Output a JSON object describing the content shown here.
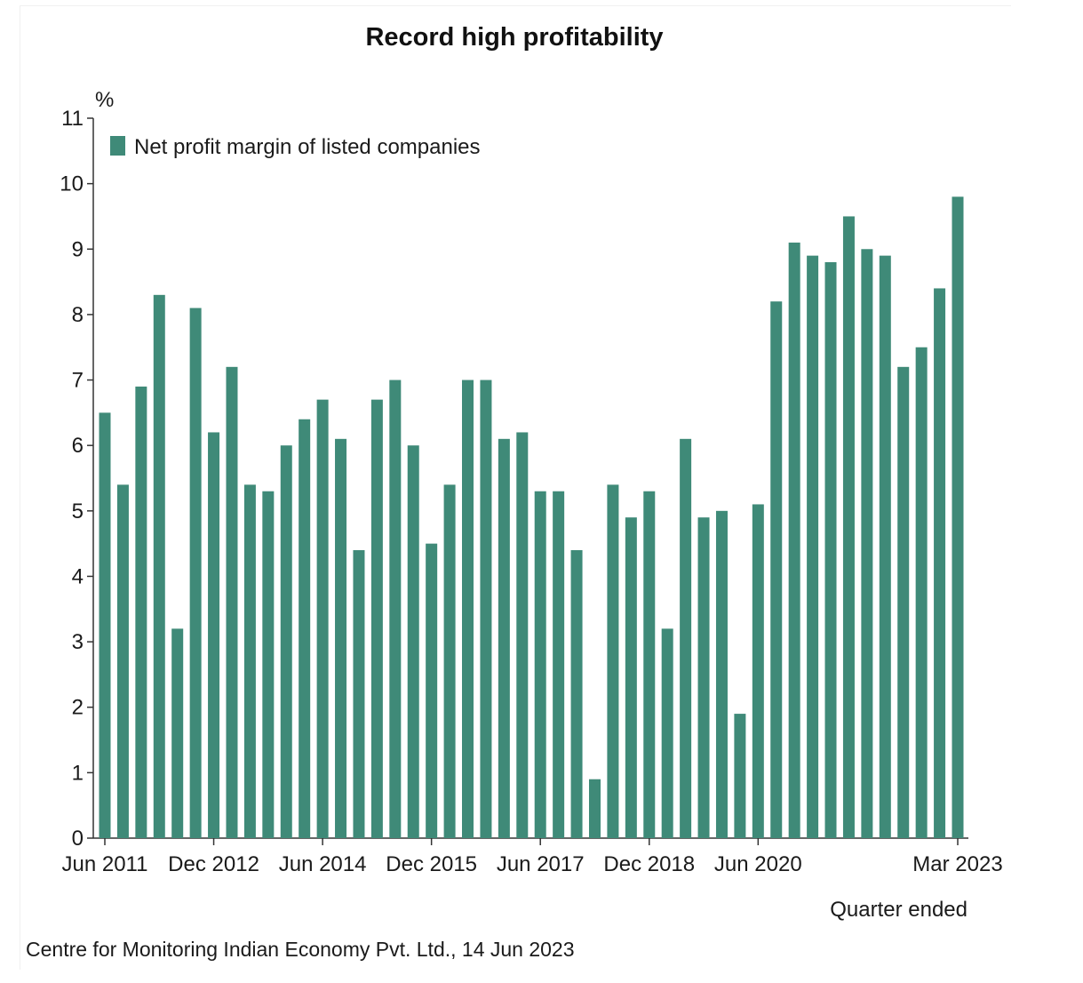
{
  "chart_data": {
    "type": "bar",
    "title": "Record high profitability",
    "ylabel": "%",
    "xlabel": "Quarter ended",
    "ylim": [
      0,
      11
    ],
    "yticks": [
      0,
      1,
      2,
      3,
      4,
      5,
      6,
      7,
      8,
      9,
      10,
      11
    ],
    "grid": false,
    "legend_position": "top-left",
    "colors": {
      "bar": "#3f8a78",
      "axis": "#333333"
    },
    "series": [
      {
        "name": "Net profit margin of listed companies",
        "values": [
          6.5,
          5.4,
          6.9,
          8.3,
          3.2,
          8.1,
          6.2,
          7.2,
          5.4,
          5.3,
          6.0,
          6.4,
          6.7,
          6.1,
          4.4,
          6.7,
          7.0,
          6.0,
          4.5,
          5.4,
          7.0,
          7.0,
          6.1,
          6.2,
          5.3,
          5.3,
          4.4,
          0.9,
          5.4,
          4.9,
          5.3,
          3.2,
          6.1,
          4.9,
          5.0,
          1.9,
          5.1,
          8.2,
          9.1,
          8.9,
          8.8,
          9.5,
          9.0,
          8.9,
          7.2,
          7.5,
          8.4,
          9.8
        ]
      }
    ],
    "categories": [
      "Jun 2011",
      "Sep 2011",
      "Dec 2011",
      "Mar 2012",
      "Jun 2012",
      "Sep 2012",
      "Dec 2012",
      "Mar 2013",
      "Jun 2013",
      "Sep 2013",
      "Dec 2013",
      "Mar 2014",
      "Jun 2014",
      "Sep 2014",
      "Dec 2014",
      "Mar 2015",
      "Jun 2015",
      "Sep 2015",
      "Dec 2015",
      "Mar 2016",
      "Jun 2016",
      "Sep 2016",
      "Dec 2016",
      "Mar 2017",
      "Jun 2017",
      "Sep 2017",
      "Dec 2017",
      "Mar 2018",
      "Jun 2018",
      "Sep 2018",
      "Dec 2018",
      "Mar 2019",
      "Jun 2019",
      "Sep 2019",
      "Dec 2019",
      "Mar 2020",
      "Jun 2020",
      "Sep 2020",
      "Dec 2020",
      "Mar 2021",
      "Jun 2021",
      "Sep 2021",
      "Dec 2021",
      "Mar 2022",
      "Jun 2022",
      "Sep 2022",
      "Dec 2022",
      "Mar 2023"
    ],
    "xtick_labels": [
      {
        "index": 0,
        "label": "Jun 2011"
      },
      {
        "index": 6,
        "label": "Dec 2012"
      },
      {
        "index": 12,
        "label": "Jun 2014"
      },
      {
        "index": 18,
        "label": "Dec 2015"
      },
      {
        "index": 24,
        "label": "Jun 2017"
      },
      {
        "index": 30,
        "label": "Dec 2018"
      },
      {
        "index": 36,
        "label": "Jun 2020"
      },
      {
        "index": 47,
        "label": "Mar 2023"
      }
    ],
    "source": "Centre for Monitoring Indian Economy Pvt. Ltd., 14 Jun 2023"
  }
}
